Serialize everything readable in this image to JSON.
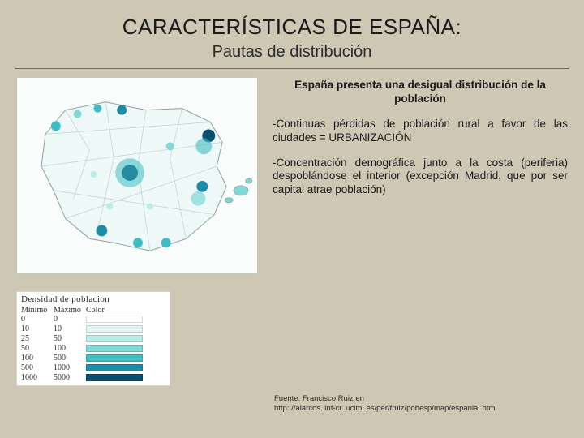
{
  "title": "CARACTERÍSTICAS DE ESPAÑA:",
  "subtitle": "Pautas de distribución",
  "heading": "España presenta una desigual distribución de la población",
  "para1": "-Continuas pérdidas de población rural a favor de las ciudades = URBANIZACIÓN",
  "para2": "-Concentración demográfica junto a la costa (periferia) despoblándose el interior (excepción Madrid, que por ser capital atrae población)",
  "source_line1": "Fuente: Francisco Ruiz en",
  "source_line2": "http: //alarcos. inf-cr. uclm. es/per/fruiz/pobesp/map/espania. htm",
  "legend": {
    "title": "Densidad de poblacion",
    "col1": "Mínimo",
    "col2": "Máximo",
    "col3": "Color",
    "rows": [
      {
        "min": "0",
        "max": "0",
        "color": "#ffffff"
      },
      {
        "min": "10",
        "max": "10",
        "color": "#e3f5f3"
      },
      {
        "min": "25",
        "max": "50",
        "color": "#b9ece8"
      },
      {
        "min": "50",
        "max": "100",
        "color": "#7fd9d6"
      },
      {
        "min": "100",
        "max": "500",
        "color": "#3fbdc4"
      },
      {
        "min": "500",
        "max": "1000",
        "color": "#1d8ca8"
      },
      {
        "min": "1000",
        "max": "5000",
        "color": "#0a4e70"
      }
    ]
  },
  "map": {
    "background": "#fafcfb",
    "outline_color": "#8aa0a0",
    "fill_base": "#e8f6f4",
    "cluster_color_light": "#7fd9d6",
    "cluster_color_mid": "#3fbdc4",
    "cluster_color_dark": "#0a4e70"
  }
}
